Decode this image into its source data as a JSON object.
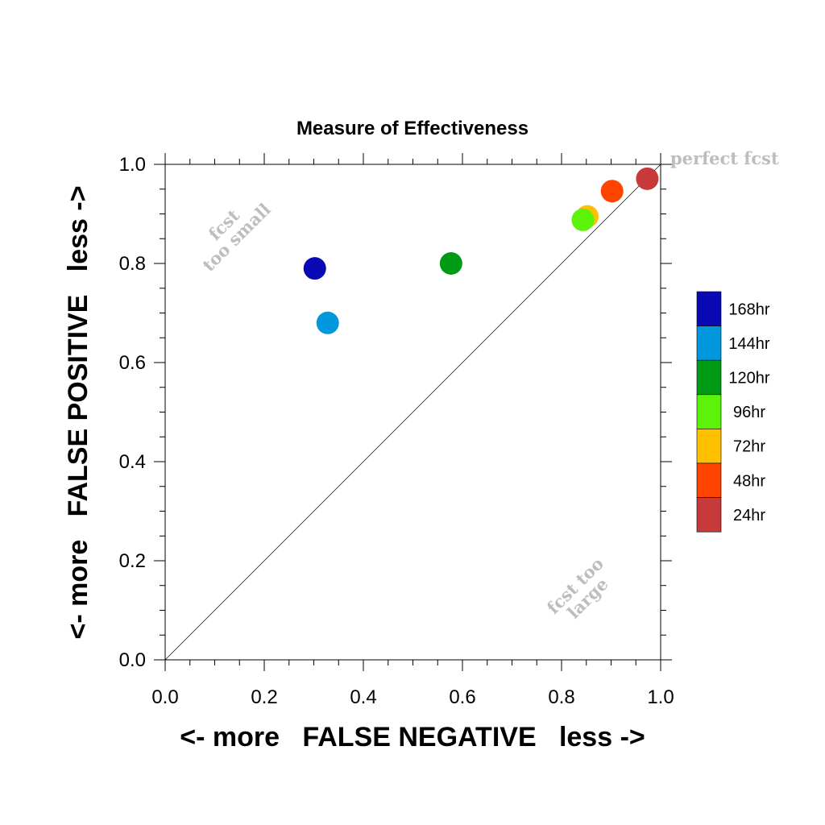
{
  "chart_data": {
    "type": "scatter",
    "title": "Measure of Effectiveness",
    "xlabel": "<- more   FALSE NEGATIVE   less ->",
    "ylabel": "<- more   FALSE POSITIVE   less ->",
    "xlim": [
      0.0,
      1.0
    ],
    "ylim": [
      0.0,
      1.0
    ],
    "x_ticks": [
      "0.0",
      "0.2",
      "0.4",
      "0.6",
      "0.8",
      "1.0"
    ],
    "y_ticks": [
      "0.0",
      "0.2",
      "0.4",
      "0.6",
      "0.8",
      "1.0"
    ],
    "grid": false,
    "legend_position": "right",
    "reference_line": "diagonal y = x",
    "annotations": [
      {
        "text": "perfect fcst"
      },
      {
        "lines": [
          "fcst",
          "too small"
        ]
      },
      {
        "lines": [
          "fcst too",
          "large"
        ]
      }
    ],
    "series": [
      {
        "name": "168hr",
        "color": "#0a0ab4",
        "x": 0.302,
        "y": 0.79
      },
      {
        "name": "144hr",
        "color": "#0097dc",
        "x": 0.328,
        "y": 0.68
      },
      {
        "name": "120hr",
        "color": "#009a14",
        "x": 0.577,
        "y": 0.8
      },
      {
        "name": "96hr",
        "color": "#5cf20a",
        "x": 0.843,
        "y": 0.888
      },
      {
        "name": "72hr",
        "color": "#ffc000",
        "x": 0.852,
        "y": 0.895
      },
      {
        "name": "48hr",
        "color": "#ff4400",
        "x": 0.902,
        "y": 0.946
      },
      {
        "name": "24hr",
        "color": "#c83a3a",
        "x": 0.973,
        "y": 0.971
      }
    ]
  }
}
